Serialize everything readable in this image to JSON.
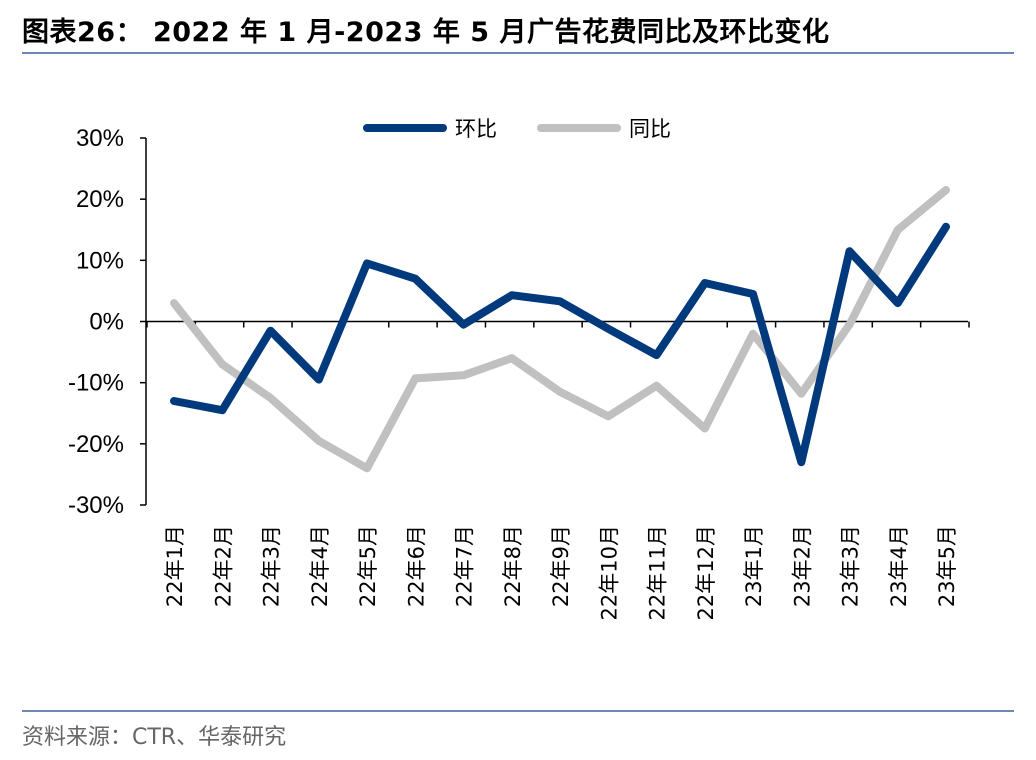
{
  "header": {
    "title": "图表26： 2022 年 1 月-2023 年 5 月广告花费同比及环比变化"
  },
  "footer": {
    "source": "资料来源：CTR、华泰研究"
  },
  "chart_data": {
    "type": "line",
    "categories": [
      "22年1月",
      "22年2月",
      "22年3月",
      "22年4月",
      "22年5月",
      "22年6月",
      "22年7月",
      "22年8月",
      "22年9月",
      "22年10月",
      "22年11月",
      "22年12月",
      "23年1月",
      "23年2月",
      "23年3月",
      "23年4月",
      "23年5月"
    ],
    "series": [
      {
        "name": "环比",
        "color": "#003a7d",
        "values": [
          -13.0,
          -14.5,
          -1.5,
          -9.5,
          9.5,
          7.0,
          -0.5,
          4.3,
          3.3,
          -1.2,
          -5.5,
          6.3,
          4.5,
          -23.0,
          11.5,
          3.0,
          15.5
        ]
      },
      {
        "name": "同比",
        "color": "#c0c0c0",
        "values": [
          3.0,
          -7.0,
          -12.5,
          -19.5,
          -24.0,
          -9.3,
          -8.8,
          -6.0,
          -11.5,
          -15.5,
          -10.5,
          -17.5,
          -2.0,
          -11.8,
          -0.5,
          15.0,
          21.5
        ]
      }
    ],
    "yticks": [
      "30%",
      "20%",
      "10%",
      "0%",
      "-10%",
      "-20%",
      "-30%"
    ],
    "ylim": [
      -30,
      30
    ],
    "xlabel": "",
    "ylabel": "",
    "legend": "top-center",
    "grid": false
  }
}
